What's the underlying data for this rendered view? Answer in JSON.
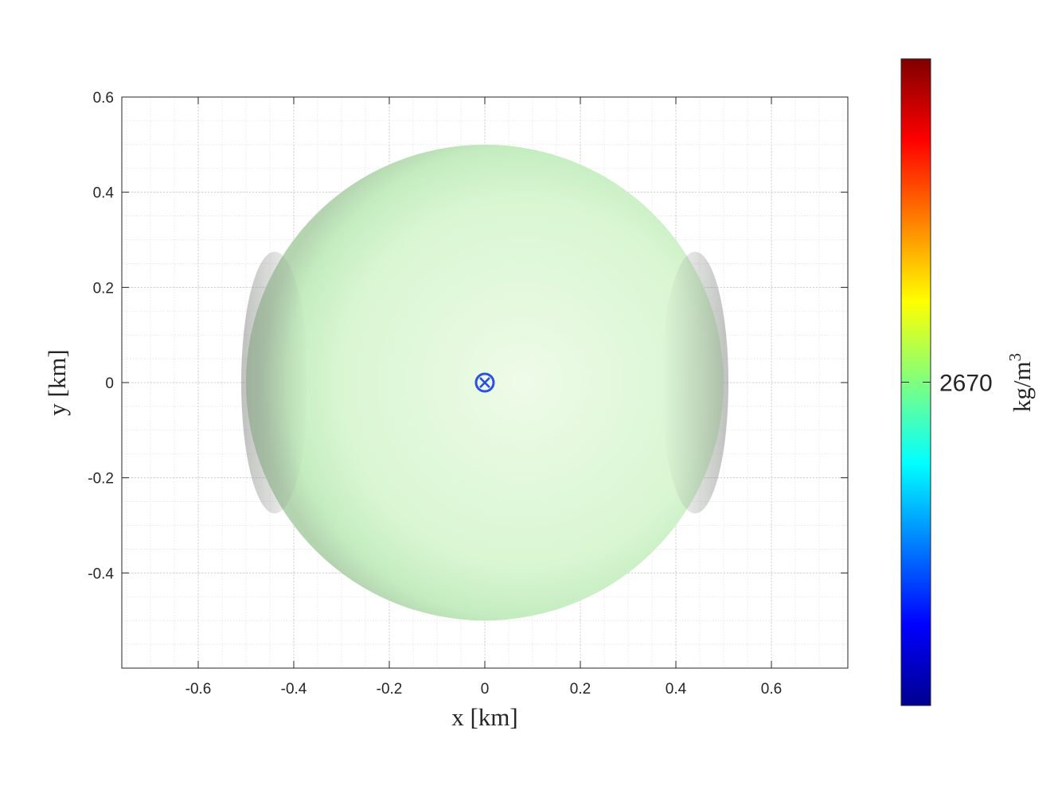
{
  "chart_data": {
    "type": "scatter",
    "xlabel": "x [km]",
    "ylabel": "y [km]",
    "xlim": [
      -0.76,
      0.76
    ],
    "ylim": [
      -0.6,
      0.6
    ],
    "xticks": [
      -0.6,
      -0.4,
      -0.2,
      0,
      0.2,
      0.4,
      0.6
    ],
    "xtick_labels": [
      "-0.6",
      "-0.4",
      "-0.2",
      "0",
      "0.2",
      "0.4",
      "0.6"
    ],
    "yticks": [
      -0.4,
      -0.2,
      0,
      0.2,
      0.4,
      0.6
    ],
    "ytick_labels": [
      "-0.4",
      "-0.2",
      "0",
      "0.2",
      "0.4",
      "0.6"
    ],
    "grid": true,
    "minor_grid": true,
    "body": {
      "shape": "sphere",
      "center": [
        0,
        0
      ],
      "radius_km": 0.5,
      "density": 2670,
      "color": "#c8f5c0"
    },
    "center_marker": {
      "x": 0,
      "y": 0,
      "symbol": "circle-x",
      "color": "#2f4fe0"
    },
    "colorbar": {
      "colormap": "jet",
      "ticks": [
        2670
      ],
      "tick_labels": [
        "2670"
      ],
      "label_text": "kg/m",
      "label_superscript": "3"
    }
  }
}
